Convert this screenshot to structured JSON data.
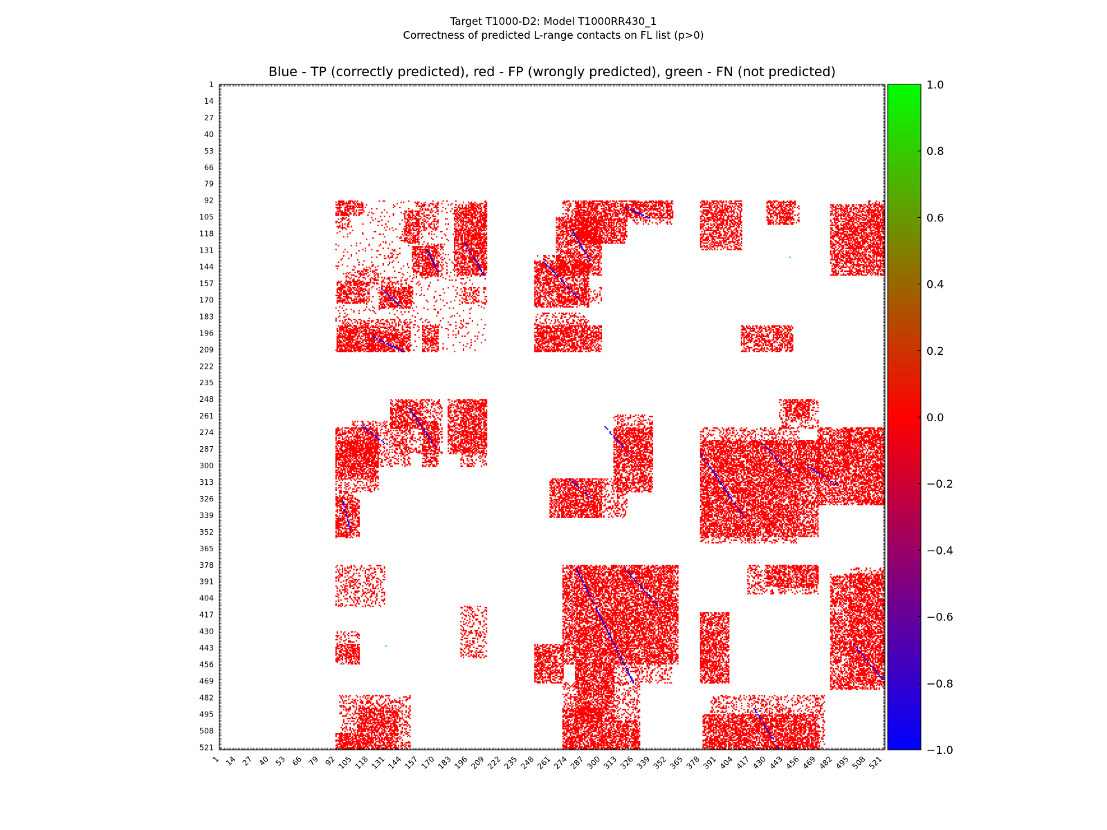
{
  "figure": {
    "suptitle_line1": "Target T1000-D2: Model T1000RR430_1",
    "suptitle_line2": "Correctness of predicted L-range contacts on FL list (p>0)",
    "axes_title": "Blue - TP (correctly predicted), red - FP (wrongly predicted), green - FN (not predicted)"
  },
  "chart_data": {
    "type": "heatmap",
    "title": "Blue - TP (correctly predicted), red - FP (wrongly predicted), green - FN (not predicted)",
    "xlim": [
      1,
      523
    ],
    "ylim": [
      1,
      523
    ],
    "y_inverted": true,
    "x_ticks": [
      1,
      14,
      27,
      40,
      53,
      66,
      79,
      92,
      105,
      118,
      131,
      144,
      157,
      170,
      183,
      196,
      209,
      222,
      235,
      248,
      261,
      274,
      287,
      300,
      313,
      326,
      339,
      352,
      365,
      378,
      391,
      404,
      417,
      430,
      443,
      456,
      469,
      482,
      495,
      508,
      521
    ],
    "y_ticks": [
      1,
      14,
      27,
      40,
      53,
      66,
      79,
      92,
      105,
      118,
      131,
      144,
      157,
      170,
      183,
      196,
      209,
      222,
      235,
      248,
      261,
      274,
      287,
      300,
      313,
      326,
      339,
      352,
      365,
      378,
      391,
      404,
      417,
      430,
      443,
      456,
      469,
      482,
      495,
      508,
      521
    ],
    "colormap": {
      "stops": [
        {
          "value": -1.0,
          "color": "#0000ff"
        },
        {
          "value": 0.0,
          "color": "#ff0000"
        },
        {
          "value": 1.0,
          "color": "#00ff00"
        }
      ],
      "ticks": [
        "1.0",
        "0.8",
        "0.6",
        "0.4",
        "0.2",
        "0.0",
        "−0.2",
        "−0.4",
        "−0.6",
        "−0.8",
        "−1.0"
      ],
      "tick_values": [
        1.0,
        0.8,
        0.6,
        0.4,
        0.2,
        0.0,
        -0.2,
        -0.4,
        -0.6,
        -0.8,
        -1.0
      ]
    },
    "legend": {
      "tp": "blue",
      "fp": "red",
      "fn": "green"
    },
    "contact_regions": [
      {
        "x": [
          92,
          113
        ],
        "y": [
          92,
          103
        ],
        "v": 0
      },
      {
        "x": [
          92,
          210
        ],
        "y": [
          92,
          210
        ],
        "v": 0,
        "sparse": true
      },
      {
        "x": [
          146,
          157
        ],
        "y": [
          100,
          125
        ],
        "v": 0
      },
      {
        "x": [
          152,
          172
        ],
        "y": [
          128,
          150
        ],
        "v": 0
      },
      {
        "x": [
          185,
          210
        ],
        "y": [
          95,
          150
        ],
        "v": 0
      },
      {
        "x": [
          93,
          118
        ],
        "y": [
          155,
          172
        ],
        "v": 0
      },
      {
        "x": [
          126,
          152
        ],
        "y": [
          160,
          176
        ],
        "v": 0
      },
      {
        "x": [
          93,
          122
        ],
        "y": [
          190,
          210
        ],
        "v": 0
      },
      {
        "x": [
          118,
          150
        ],
        "y": [
          195,
          210
        ],
        "v": 0
      },
      {
        "x": [
          160,
          172
        ],
        "y": [
          190,
          210
        ],
        "v": 0
      },
      {
        "x": [
          248,
          290
        ],
        "y": [
          140,
          175
        ],
        "v": 0
      },
      {
        "x": [
          265,
          300
        ],
        "y": [
          105,
          150
        ],
        "v": 0
      },
      {
        "x": [
          280,
          320
        ],
        "y": [
          92,
          125
        ],
        "v": 0
      },
      {
        "x": [
          320,
          356
        ],
        "y": [
          92,
          105
        ],
        "v": 0
      },
      {
        "x": [
          248,
          300
        ],
        "y": [
          190,
          210
        ],
        "v": 0
      },
      {
        "x": [
          378,
          410
        ],
        "y": [
          92,
          130
        ],
        "v": 0
      },
      {
        "x": [
          430,
          450
        ],
        "y": [
          92,
          110
        ],
        "v": 0
      },
      {
        "x": [
          480,
          523
        ],
        "y": [
          95,
          150
        ],
        "v": 0
      },
      {
        "x": [
          410,
          450
        ],
        "y": [
          190,
          210
        ],
        "v": 0
      },
      {
        "x": [
          135,
          160
        ],
        "y": [
          248,
          270
        ],
        "v": 0
      },
      {
        "x": [
          160,
          172
        ],
        "y": [
          265,
          300
        ],
        "v": 0
      },
      {
        "x": [
          92,
          125
        ],
        "y": [
          270,
          310
        ],
        "v": 0
      },
      {
        "x": [
          92,
          110
        ],
        "y": [
          325,
          355
        ],
        "v": 0
      },
      {
        "x": [
          180,
          210
        ],
        "y": [
          248,
          290
        ],
        "v": 0
      },
      {
        "x": [
          260,
          300
        ],
        "y": [
          310,
          340
        ],
        "v": 0
      },
      {
        "x": [
          310,
          340
        ],
        "y": [
          270,
          320
        ],
        "v": 0
      },
      {
        "x": [
          378,
          470
        ],
        "y": [
          280,
          355
        ],
        "v": 0
      },
      {
        "x": [
          470,
          523
        ],
        "y": [
          270,
          330
        ],
        "v": 0
      },
      {
        "x": [
          445,
          463
        ],
        "y": [
          248,
          262
        ],
        "v": 0
      },
      {
        "x": [
          270,
          360
        ],
        "y": [
          378,
          455
        ],
        "v": 0
      },
      {
        "x": [
          248,
          270
        ],
        "y": [
          440,
          470
        ],
        "v": 0
      },
      {
        "x": [
          280,
          310
        ],
        "y": [
          455,
          500
        ],
        "v": 0
      },
      {
        "x": [
          430,
          470
        ],
        "y": [
          378,
          395
        ],
        "v": 0
      },
      {
        "x": [
          378,
          400
        ],
        "y": [
          415,
          470
        ],
        "v": 0
      },
      {
        "x": [
          480,
          523
        ],
        "y": [
          385,
          475
        ],
        "v": 0
      },
      {
        "x": [
          92,
          110
        ],
        "y": [
          440,
          455
        ],
        "v": 0
      },
      {
        "x": [
          110,
          140
        ],
        "y": [
          490,
          523
        ],
        "v": 0
      },
      {
        "x": [
          92,
          110
        ],
        "y": [
          510,
          523
        ],
        "v": 0
      },
      {
        "x": [
          270,
          300
        ],
        "y": [
          490,
          523
        ],
        "v": 0
      },
      {
        "x": [
          380,
          470
        ],
        "y": [
          495,
          523
        ],
        "v": 0
      },
      {
        "x": [
          300,
          330
        ],
        "y": [
          500,
          523
        ],
        "v": 0
      }
    ],
    "tp_segments": [
      {
        "x": [
          127,
          143
        ],
        "y": [
          160,
          175
        ]
      },
      {
        "x": [
          120,
          145
        ],
        "y": [
          198,
          210
        ]
      },
      {
        "x": [
          163,
          172
        ],
        "y": [
          130,
          147
        ]
      },
      {
        "x": [
          193,
          208
        ],
        "y": [
          125,
          150
        ]
      },
      {
        "x": [
          277,
          292
        ],
        "y": [
          115,
          140
        ]
      },
      {
        "x": [
          255,
          282
        ],
        "y": [
          140,
          168
        ]
      },
      {
        "x": [
          318,
          338
        ],
        "y": [
          97,
          105
        ]
      },
      {
        "x": [
          112,
          130
        ],
        "y": [
          268,
          282
        ]
      },
      {
        "x": [
          150,
          170
        ],
        "y": [
          255,
          285
        ]
      },
      {
        "x": [
          302,
          322
        ],
        "y": [
          268,
          290
        ]
      },
      {
        "x": [
          275,
          292
        ],
        "y": [
          310,
          325
        ]
      },
      {
        "x": [
          378,
          412
        ],
        "y": [
          290,
          340
        ]
      },
      {
        "x": [
          426,
          448
        ],
        "y": [
          282,
          305
        ]
      },
      {
        "x": [
          462,
          485
        ],
        "y": [
          300,
          315
        ]
      },
      {
        "x": [
          97,
          103
        ],
        "y": [
          325,
          350
        ]
      },
      {
        "x": [
          280,
          325
        ],
        "y": [
          380,
          470
        ]
      },
      {
        "x": [
          318,
          345
        ],
        "y": [
          380,
          410
        ]
      },
      {
        "x": [
          498,
          523
        ],
        "y": [
          440,
          470
        ]
      },
      {
        "x": [
          420,
          440
        ],
        "y": [
          490,
          523
        ]
      }
    ],
    "fn_points": [
      {
        "x": 131,
        "y": 441
      },
      {
        "x": 448,
        "y": 136
      },
      {
        "x": 448,
        "y": 196
      }
    ]
  }
}
